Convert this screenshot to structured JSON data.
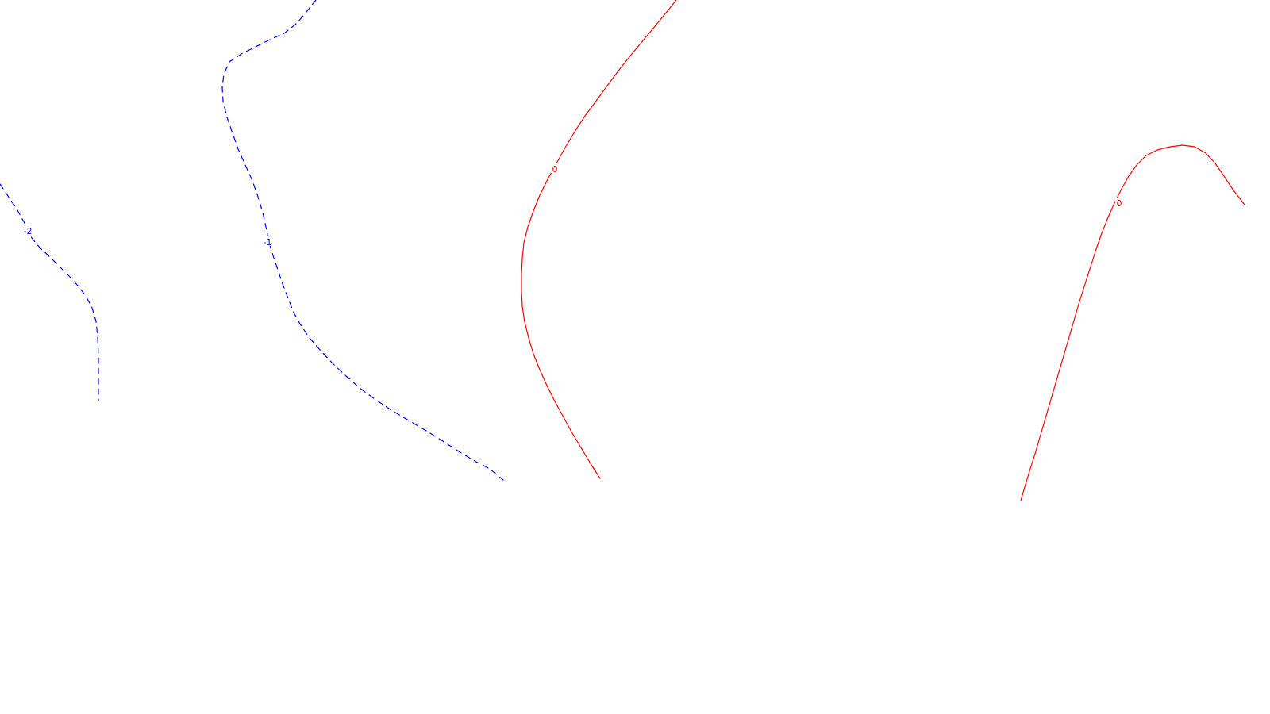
{
  "chart_data": {
    "type": "contour",
    "grid": false,
    "legend": "none",
    "contours": [
      {
        "level": "-2",
        "color": "#0000ff",
        "style": "dashed",
        "label_text": "-2"
      },
      {
        "level": "-1",
        "color": "#0000ff",
        "style": "dashed",
        "label_text": "-1"
      },
      {
        "level": "0",
        "color": "#ff0000",
        "style": "solid",
        "label_text": "0"
      },
      {
        "level": "0",
        "color": "#ff0000",
        "style": "solid",
        "label_text": "0"
      }
    ]
  }
}
